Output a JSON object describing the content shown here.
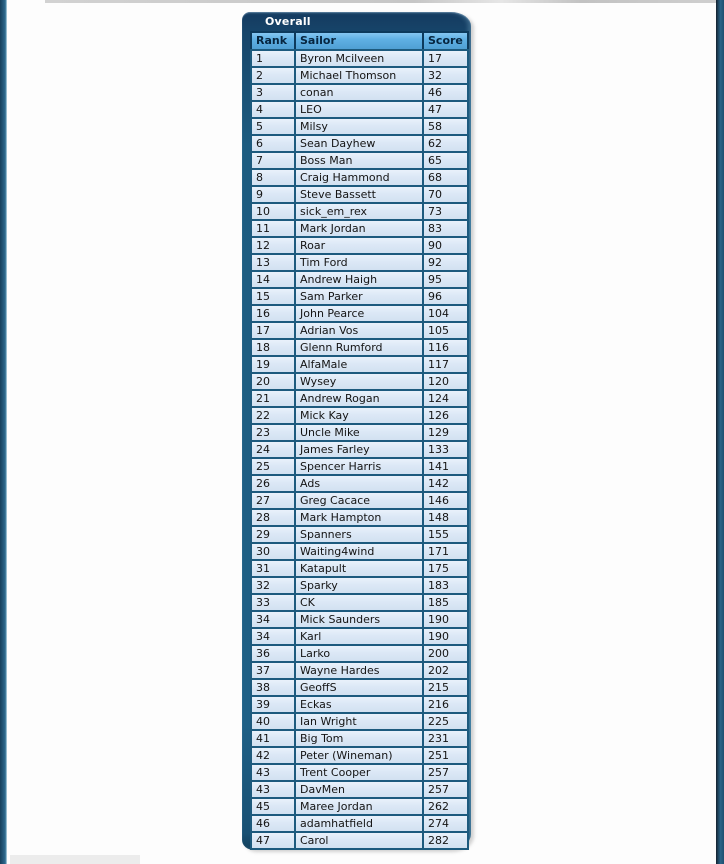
{
  "leaderboard": {
    "title": "Overall",
    "columns": [
      "Rank",
      "Sailor",
      "Score"
    ],
    "rows": [
      [
        "1",
        "Byron Mcilveen",
        "17"
      ],
      [
        "2",
        "Michael Thomson",
        "32"
      ],
      [
        "3",
        "conan",
        "46"
      ],
      [
        "4",
        "LEO",
        "47"
      ],
      [
        "5",
        "Milsy",
        "58"
      ],
      [
        "6",
        "Sean Dayhew",
        "62"
      ],
      [
        "7",
        "Boss Man",
        "65"
      ],
      [
        "8",
        "Craig Hammond",
        "68"
      ],
      [
        "9",
        "Steve Bassett",
        "70"
      ],
      [
        "10",
        "sick_em_rex",
        "73"
      ],
      [
        "11",
        "Mark Jordan",
        "83"
      ],
      [
        "12",
        "Roar",
        "90"
      ],
      [
        "13",
        "Tim Ford",
        "92"
      ],
      [
        "14",
        "Andrew Haigh",
        "95"
      ],
      [
        "15",
        "Sam Parker",
        "96"
      ],
      [
        "16",
        "John Pearce",
        "104"
      ],
      [
        "17",
        "Adrian Vos",
        "105"
      ],
      [
        "18",
        "Glenn Rumford",
        "116"
      ],
      [
        "19",
        "AlfaMale",
        "117"
      ],
      [
        "20",
        "Wysey",
        "120"
      ],
      [
        "21",
        "Andrew Rogan",
        "124"
      ],
      [
        "22",
        "Mick Kay",
        "126"
      ],
      [
        "23",
        "Uncle Mike",
        "129"
      ],
      [
        "24",
        "James Farley",
        "133"
      ],
      [
        "25",
        "Spencer Harris",
        "141"
      ],
      [
        "26",
        "Ads",
        "142"
      ],
      [
        "27",
        "Greg Cacace",
        "146"
      ],
      [
        "28",
        "Mark Hampton",
        "148"
      ],
      [
        "29",
        "Spanners",
        "155"
      ],
      [
        "30",
        "Waiting4wind",
        "171"
      ],
      [
        "31",
        "Katapult",
        "175"
      ],
      [
        "32",
        "Sparky",
        "183"
      ],
      [
        "33",
        "CK",
        "185"
      ],
      [
        "34",
        "Mick Saunders",
        "190"
      ],
      [
        "34",
        "Karl",
        "190"
      ],
      [
        "36",
        "Larko",
        "200"
      ],
      [
        "37",
        "Wayne Hardes",
        "202"
      ],
      [
        "38",
        "GeoffS",
        "215"
      ],
      [
        "39",
        "Eckas",
        "216"
      ],
      [
        "40",
        "Ian Wright",
        "225"
      ],
      [
        "41",
        "Big Tom",
        "231"
      ],
      [
        "42",
        "Peter (Wineman)",
        "251"
      ],
      [
        "43",
        "Trent Cooper",
        "257"
      ],
      [
        "43",
        "DavMen",
        "257"
      ],
      [
        "45",
        "Maree Jordan",
        "262"
      ],
      [
        "46",
        "adamhatfield",
        "274"
      ],
      [
        "47",
        "Carol",
        "282"
      ]
    ]
  },
  "colors": {
    "panel_top_navy": "#143a5f",
    "panel_teal": "#1f6086",
    "header_blue": "#5fb0e4",
    "header_text": "#06253f",
    "row_light_blue": "#dce8f6",
    "cell_border_teal": "#1d5a7e",
    "header_border_navy": "#0d3a5c",
    "page_edge_blue": "#24587a"
  }
}
